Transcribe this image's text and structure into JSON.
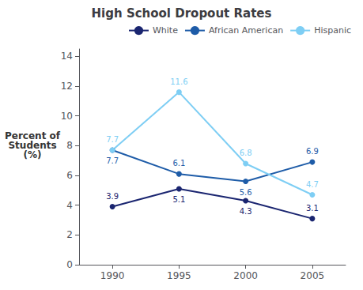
{
  "chart_data": {
    "type": "line",
    "title": "High School Dropout Rates",
    "ylabel": "Percent of\nStudents\n(%)",
    "x": [
      1990,
      1995,
      2000,
      2005
    ],
    "series": [
      {
        "name": "White",
        "color": "#1a2570",
        "marker": "circle",
        "values": [
          3.9,
          5.1,
          4.3,
          3.1
        ]
      },
      {
        "name": "African American",
        "color": "#1e5ca8",
        "marker": "circle",
        "values": [
          7.7,
          6.1,
          5.6,
          6.9
        ]
      },
      {
        "name": "Hispanic",
        "color": "#7ecef4",
        "marker": "circle",
        "values": [
          7.7,
          11.6,
          6.8,
          4.7
        ]
      }
    ],
    "xlim": [
      1987.5,
      2007.5
    ],
    "xticks": [
      1990,
      1995,
      2000,
      2005
    ],
    "ylim": [
      0,
      14.5
    ],
    "yticks": [
      0,
      2,
      4,
      6,
      8,
      10,
      12,
      14
    ],
    "data_labels": true,
    "grid": false,
    "legend": "upper right"
  }
}
